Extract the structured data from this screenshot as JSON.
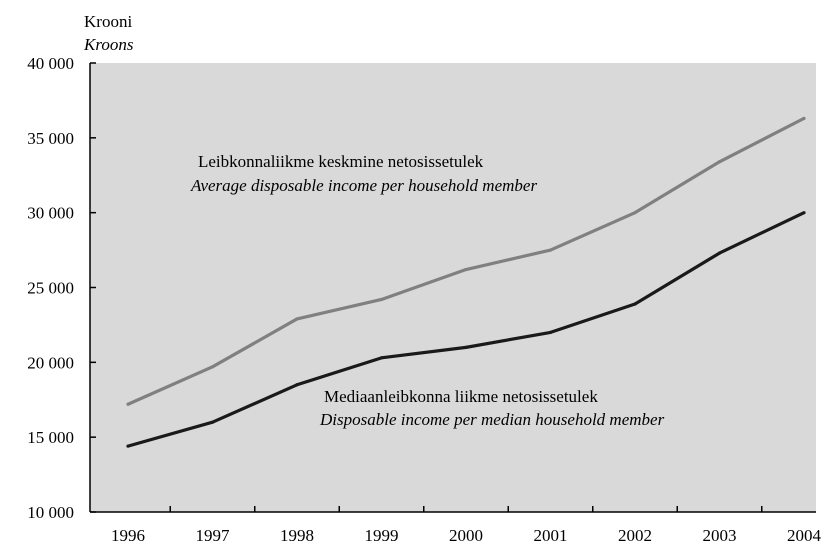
{
  "chart_data": {
    "type": "line",
    "ylabel_et": "Krooni",
    "ylabel_en": "Kroons",
    "categories": [
      "1996",
      "1997",
      "1998",
      "1999",
      "2000",
      "2001",
      "2002",
      "2003",
      "2004"
    ],
    "yticks": [
      "10 000",
      "15 000",
      "20 000",
      "25 000",
      "30 000",
      "35 000",
      "40 000"
    ],
    "ylim": [
      10000,
      40000
    ],
    "grid": false,
    "plot_background": "#d9d9d9",
    "series": [
      {
        "name": "Leibkonnaliikme keskmine netosissetulek",
        "name_en": "Average disposable income per household member",
        "color": "#808080",
        "values": [
          17200,
          19700,
          22900,
          24200,
          26200,
          27500,
          30000,
          33400,
          36300
        ]
      },
      {
        "name": "Mediaanleibkonna liikme netosissetulek",
        "name_en": "Disposable income per median household member",
        "color": "#1a1a1a",
        "values": [
          14400,
          16000,
          18500,
          20300,
          21000,
          22000,
          23900,
          27300,
          30000
        ]
      }
    ]
  }
}
